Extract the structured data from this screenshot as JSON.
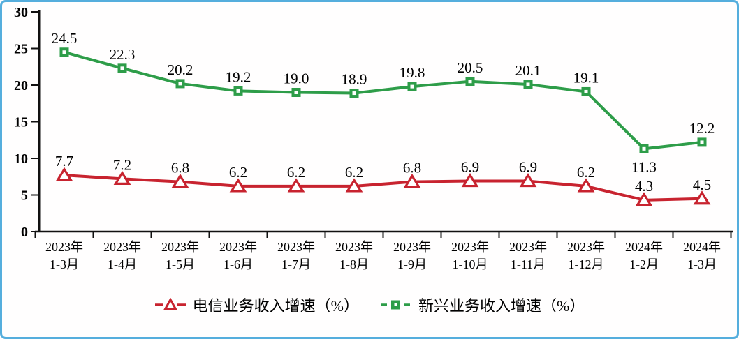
{
  "chart_data": {
    "type": "line",
    "categories": [
      [
        "2023年",
        "1-3月"
      ],
      [
        "2023年",
        "1-4月"
      ],
      [
        "2023年",
        "1-5月"
      ],
      [
        "2023年",
        "1-6月"
      ],
      [
        "2023年",
        "1-7月"
      ],
      [
        "2023年",
        "1-8月"
      ],
      [
        "2023年",
        "1-9月"
      ],
      [
        "2023年",
        "1-10月"
      ],
      [
        "2023年",
        "1-11月"
      ],
      [
        "2023年",
        "1-12月"
      ],
      [
        "2024年",
        "1-2月"
      ],
      [
        "2024年",
        "1-3月"
      ]
    ],
    "series": [
      {
        "id": "telecom",
        "name": "电信业务收入增速（%）",
        "color": "#C8232F",
        "marker": "triangle",
        "values": [
          7.7,
          7.2,
          6.8,
          6.2,
          6.2,
          6.2,
          6.8,
          6.9,
          6.9,
          6.2,
          4.3,
          4.5
        ],
        "label_positions": [
          "above",
          "above",
          "above",
          "above",
          "above",
          "above",
          "above",
          "above",
          "above",
          "above",
          "above",
          "above"
        ]
      },
      {
        "id": "emerging",
        "name": "新兴业务收入增速（%）",
        "color": "#2E9D49",
        "marker": "square",
        "values": [
          24.5,
          22.3,
          20.2,
          19.2,
          19.0,
          18.9,
          19.8,
          20.5,
          20.1,
          19.1,
          11.3,
          12.2
        ],
        "label_positions": [
          "above",
          "above",
          "above",
          "above",
          "above",
          "above",
          "above",
          "above",
          "above",
          "above",
          "below",
          "above"
        ]
      }
    ],
    "yticks": [
      0,
      5,
      10,
      15,
      20,
      25,
      30
    ],
    "ylim": [
      0,
      30
    ],
    "grid": false,
    "legend_position": "bottom",
    "axis_color": "#111111",
    "frame_border_color": "#55AEDD",
    "background_color": "#FFFFFF"
  }
}
